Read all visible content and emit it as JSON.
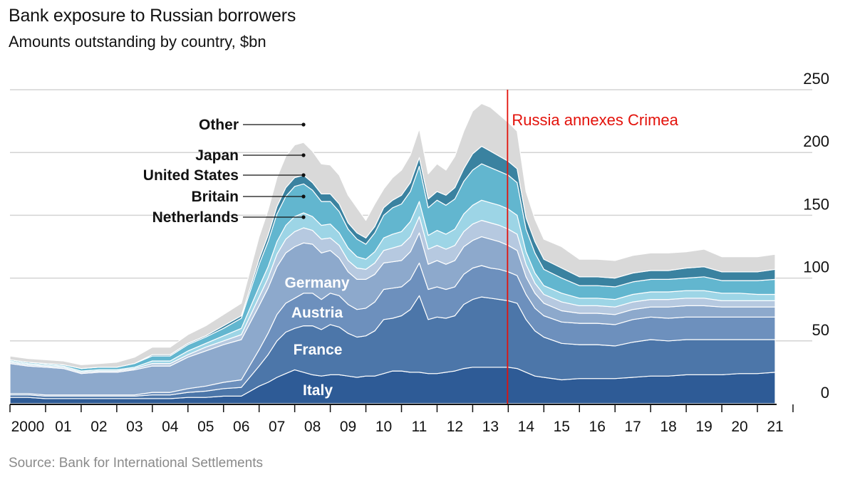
{
  "chart_data": {
    "type": "area",
    "stacked": true,
    "title": "Bank exposure to Russian borrowers",
    "subtitle": "Amounts outstanding by country, $bn",
    "source": "Source: Bank for International Settlements",
    "ylim": [
      0,
      250
    ],
    "yticks": [
      0,
      50,
      100,
      150,
      200,
      250
    ],
    "y_axis_side": "right",
    "grid": true,
    "x_tick_labels": [
      "2000",
      "01",
      "02",
      "03",
      "04",
      "05",
      "06",
      "07",
      "08",
      "09",
      "10",
      "11",
      "12",
      "13",
      "14",
      "15",
      "16",
      "17",
      "18",
      "19",
      "20",
      "21"
    ],
    "x": [
      2000.0,
      2000.5,
      2001.0,
      2001.5,
      2002.0,
      2002.5,
      2003.0,
      2003.5,
      2004.0,
      2004.5,
      2005.0,
      2005.5,
      2006.0,
      2006.5,
      2007.0,
      2007.25,
      2007.5,
      2007.75,
      2008.0,
      2008.25,
      2008.5,
      2008.75,
      2009.0,
      2009.25,
      2009.5,
      2009.75,
      2010.0,
      2010.25,
      2010.5,
      2010.75,
      2011.0,
      2011.25,
      2011.5,
      2011.75,
      2012.0,
      2012.25,
      2012.5,
      2012.75,
      2013.0,
      2013.25,
      2013.5,
      2013.75,
      2014.0,
      2014.25,
      2014.5,
      2014.75,
      2015.0,
      2015.5,
      2016.0,
      2016.5,
      2017.0,
      2017.5,
      2018.0,
      2018.5,
      2019.0,
      2019.5,
      2020.0,
      2020.5,
      2021.0,
      2021.5
    ],
    "series": [
      {
        "name": "Italy",
        "color": "#2e5b96",
        "values": [
          5,
          5,
          4,
          4,
          4,
          4,
          4,
          4,
          4,
          4,
          5,
          5,
          6,
          6,
          14,
          17,
          21,
          24,
          27,
          25,
          23,
          22,
          23,
          23,
          22,
          21,
          22,
          22,
          24,
          26,
          26,
          25,
          25,
          24,
          24,
          25,
          26,
          28,
          29,
          29,
          29,
          29,
          29,
          28,
          25,
          22,
          21,
          19,
          20,
          20,
          20,
          21,
          22,
          22,
          23,
          23,
          23,
          24,
          24,
          25
        ]
      },
      {
        "name": "France",
        "color": "#4c76a9",
        "values": [
          2,
          2,
          2,
          2,
          2,
          2,
          2,
          2,
          3,
          3,
          4,
          5,
          6,
          7,
          16,
          22,
          29,
          33,
          33,
          37,
          39,
          37,
          40,
          38,
          34,
          32,
          32,
          36,
          43,
          42,
          44,
          50,
          61,
          43,
          45,
          43,
          44,
          51,
          54,
          56,
          55,
          54,
          53,
          52,
          42,
          36,
          32,
          29,
          27,
          27,
          26,
          28,
          29,
          28,
          28,
          28,
          28,
          27,
          27,
          26
        ]
      },
      {
        "name": "Austria",
        "color": "#6d90bd",
        "values": [
          1,
          1,
          1,
          1,
          1,
          1,
          1,
          1,
          2,
          2,
          3,
          4,
          5,
          6,
          13,
          17,
          21,
          23,
          24,
          26,
          26,
          24,
          25,
          25,
          23,
          22,
          22,
          23,
          24,
          24,
          23,
          24,
          26,
          24,
          24,
          23,
          23,
          24,
          25,
          25,
          24,
          24,
          23,
          22,
          20,
          18,
          17,
          17,
          17,
          17,
          17,
          18,
          18,
          18,
          18,
          18,
          18,
          18,
          18,
          18
        ]
      },
      {
        "name": "Germany",
        "color": "#8da9cc",
        "values": [
          24,
          22,
          22,
          21,
          17,
          18,
          18,
          20,
          21,
          21,
          25,
          28,
          30,
          32,
          35,
          36,
          38,
          40,
          41,
          40,
          39,
          37,
          34,
          30,
          26,
          24,
          23,
          22,
          21,
          21,
          21,
          22,
          24,
          20,
          21,
          20,
          21,
          22,
          22,
          23,
          23,
          22,
          21,
          20,
          14,
          12,
          10,
          9,
          8,
          8,
          8,
          8,
          8,
          9,
          9,
          9,
          8,
          8,
          8,
          8
        ]
      },
      {
        "name": "Netherlands",
        "color": "#b6c9e0",
        "values": [
          1,
          1,
          1,
          1,
          1,
          1,
          1,
          1,
          2,
          2,
          2,
          3,
          3,
          4,
          7,
          8,
          10,
          11,
          12,
          12,
          11,
          11,
          10,
          10,
          9,
          9,
          8,
          9,
          10,
          11,
          12,
          12,
          13,
          12,
          12,
          12,
          12,
          12,
          13,
          13,
          13,
          13,
          13,
          13,
          10,
          8,
          7,
          7,
          6,
          6,
          6,
          6,
          6,
          6,
          6,
          6,
          5,
          5,
          5,
          5
        ]
      },
      {
        "name": "Britain",
        "color": "#9dd5e6",
        "values": [
          1,
          1,
          1,
          1,
          1,
          1,
          1,
          1,
          2,
          2,
          3,
          3,
          4,
          5,
          8,
          9,
          10,
          11,
          12,
          12,
          11,
          11,
          11,
          10,
          10,
          9,
          8,
          9,
          10,
          11,
          11,
          12,
          12,
          11,
          12,
          12,
          13,
          14,
          15,
          16,
          16,
          16,
          16,
          15,
          10,
          8,
          7,
          7,
          6,
          6,
          6,
          6,
          6,
          6,
          6,
          6,
          6,
          6,
          5,
          5
        ]
      },
      {
        "name": "United States",
        "color": "#62b6cf",
        "values": [
          1,
          1,
          1,
          1,
          2,
          2,
          2,
          3,
          4,
          4,
          5,
          5,
          6,
          8,
          18,
          20,
          22,
          23,
          24,
          23,
          21,
          19,
          18,
          17,
          15,
          14,
          12,
          15,
          18,
          21,
          22,
          24,
          28,
          22,
          24,
          23,
          24,
          26,
          28,
          29,
          28,
          27,
          27,
          26,
          18,
          16,
          13,
          12,
          10,
          10,
          10,
          10,
          10,
          10,
          10,
          11,
          10,
          10,
          11,
          12
        ]
      },
      {
        "name": "Japan",
        "color": "#3a82a0",
        "values": [
          0,
          0,
          0,
          0,
          0,
          0,
          0,
          0,
          1,
          1,
          1,
          1,
          2,
          2,
          4,
          5,
          6,
          7,
          7,
          7,
          6,
          6,
          6,
          6,
          5,
          5,
          5,
          5,
          6,
          6,
          7,
          7,
          7,
          7,
          7,
          8,
          9,
          10,
          13,
          14,
          13,
          12,
          11,
          11,
          9,
          9,
          8,
          8,
          7,
          7,
          7,
          7,
          7,
          7,
          8,
          8,
          7,
          7,
          7,
          8
        ]
      },
      {
        "name": "Other",
        "color": "#d9d9d9",
        "values": [
          3,
          3,
          3,
          3,
          3,
          3,
          4,
          5,
          6,
          6,
          7,
          8,
          9,
          10,
          18,
          20,
          23,
          25,
          26,
          26,
          25,
          24,
          23,
          23,
          22,
          20,
          14,
          18,
          15,
          18,
          20,
          22,
          23,
          20,
          22,
          20,
          25,
          30,
          34,
          34,
          35,
          33,
          31,
          30,
          21,
          18,
          16,
          17,
          14,
          14,
          14,
          14,
          14,
          14,
          13,
          14,
          12,
          12,
          12,
          12
        ]
      }
    ],
    "series_labels": {
      "inside": [
        "Germany",
        "Austria",
        "France",
        "Italy"
      ],
      "leader": [
        "Other",
        "Japan",
        "United States",
        "Britain",
        "Netherlands"
      ]
    },
    "annotations": [
      {
        "x": 2014.0,
        "text": "Russia annexes Crimea",
        "color": "#e3120b"
      }
    ]
  }
}
